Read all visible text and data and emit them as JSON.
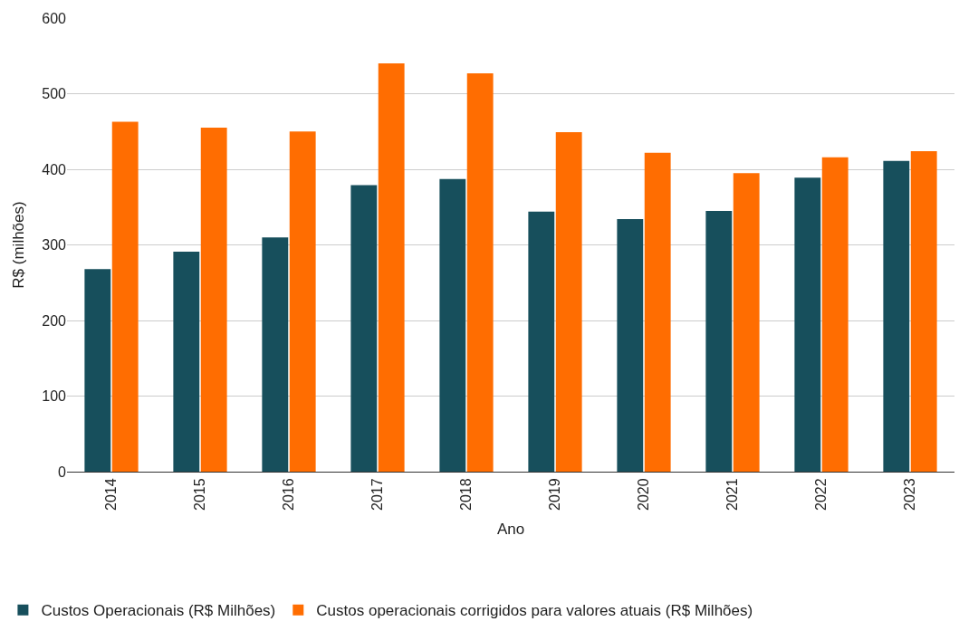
{
  "chart_data": {
    "type": "bar",
    "xlabel": "Ano",
    "ylabel": "R$ (milhões)",
    "categories": [
      "2014",
      "2015",
      "2016",
      "2017",
      "2018",
      "2019",
      "2020",
      "2021",
      "2022",
      "2023"
    ],
    "series": [
      {
        "name": "Custos Operacionais (R$ Milhões)",
        "color": "#174f5c",
        "values": [
          268,
          291,
          310,
          379,
          387,
          344,
          334,
          345,
          389,
          411
        ]
      },
      {
        "name": "Custos operacionais corrigidos para valores atuais (R$ Milhões)",
        "color": "#ff6d01",
        "values": [
          463,
          455,
          450,
          540,
          527,
          449,
          422,
          395,
          416,
          424
        ]
      }
    ],
    "ylim": [
      0,
      600
    ],
    "yticks": [
      0,
      100,
      200,
      300,
      400,
      500,
      600
    ],
    "grid": "y",
    "legend": "bottom"
  }
}
